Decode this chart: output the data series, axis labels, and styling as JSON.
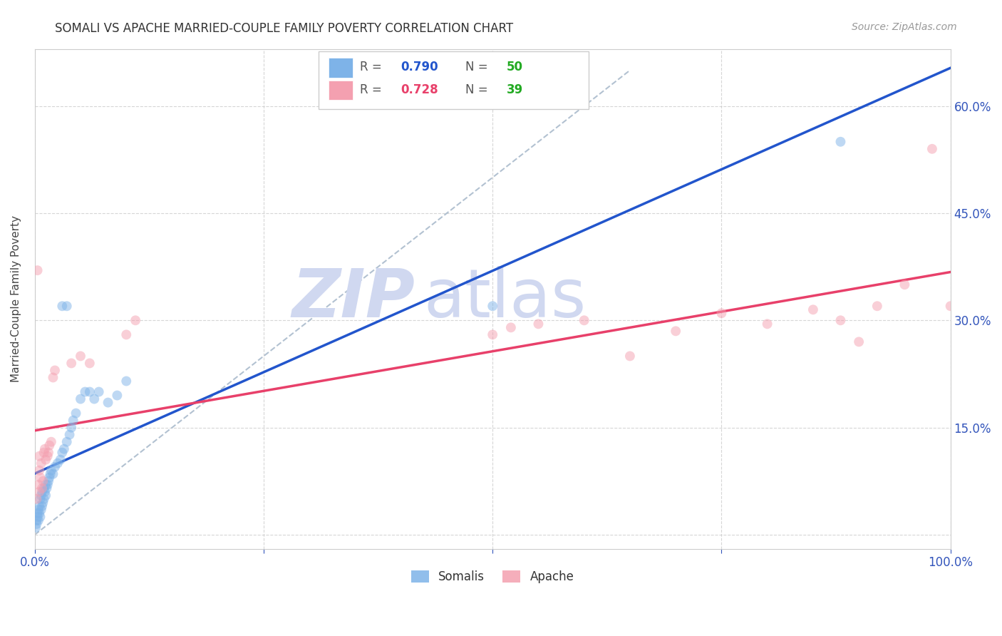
{
  "title": "SOMALI VS APACHE MARRIED-COUPLE FAMILY POVERTY CORRELATION CHART",
  "source": "Source: ZipAtlas.com",
  "ylabel": "Married-Couple Family Poverty",
  "xlim": [
    0,
    1.0
  ],
  "ylim": [
    -0.02,
    0.68
  ],
  "yticks": [
    0.0,
    0.15,
    0.3,
    0.45,
    0.6
  ],
  "ytick_labels": [
    "",
    "15.0%",
    "30.0%",
    "45.0%",
    "60.0%"
  ],
  "xtick_labels": [
    "0.0%",
    "",
    "",
    "",
    "100.0%"
  ],
  "grid_color": "#cccccc",
  "background_color": "#ffffff",
  "somali_color": "#7EB3E8",
  "apache_color": "#F4A0B0",
  "diagonal_color": "#aabbcc",
  "somali_line_color": "#2255CC",
  "apache_line_color": "#E8406A",
  "legend_R_color": "#2255CC",
  "legend_N_color": "#22AA22",
  "watermark_zip_color": "#D0D8F0",
  "watermark_atlas_color": "#D0D8F0",
  "marker_size": 100,
  "marker_alpha": 0.5,
  "line_width": 2.5,
  "somali_x": [
    0.001,
    0.002,
    0.002,
    0.003,
    0.003,
    0.004,
    0.004,
    0.005,
    0.005,
    0.006,
    0.006,
    0.007,
    0.007,
    0.008,
    0.008,
    0.009,
    0.01,
    0.01,
    0.011,
    0.012,
    0.012,
    0.013,
    0.014,
    0.015,
    0.016,
    0.017,
    0.018,
    0.02,
    0.022,
    0.025,
    0.028,
    0.03,
    0.032,
    0.035,
    0.038,
    0.04,
    0.042,
    0.045,
    0.05,
    0.055,
    0.06,
    0.065,
    0.07,
    0.08,
    0.09,
    0.1,
    0.03,
    0.035,
    0.5,
    0.88
  ],
  "somali_y": [
    0.01,
    0.015,
    0.02,
    0.025,
    0.03,
    0.02,
    0.035,
    0.03,
    0.04,
    0.025,
    0.05,
    0.035,
    0.055,
    0.04,
    0.06,
    0.045,
    0.05,
    0.065,
    0.06,
    0.055,
    0.07,
    0.065,
    0.07,
    0.075,
    0.08,
    0.085,
    0.09,
    0.085,
    0.095,
    0.1,
    0.105,
    0.115,
    0.12,
    0.13,
    0.14,
    0.15,
    0.16,
    0.17,
    0.19,
    0.2,
    0.2,
    0.19,
    0.2,
    0.185,
    0.195,
    0.215,
    0.32,
    0.32,
    0.32,
    0.55
  ],
  "apache_x": [
    0.002,
    0.003,
    0.004,
    0.005,
    0.005,
    0.006,
    0.007,
    0.008,
    0.009,
    0.01,
    0.011,
    0.012,
    0.014,
    0.015,
    0.016,
    0.018,
    0.02,
    0.022,
    0.04,
    0.05,
    0.06,
    0.1,
    0.11,
    0.5,
    0.52,
    0.55,
    0.6,
    0.65,
    0.7,
    0.75,
    0.8,
    0.85,
    0.88,
    0.9,
    0.92,
    0.95,
    0.98,
    1.0,
    0.005
  ],
  "apache_y": [
    0.05,
    0.37,
    0.07,
    0.09,
    0.11,
    0.08,
    0.1,
    0.065,
    0.075,
    0.115,
    0.12,
    0.105,
    0.11,
    0.115,
    0.125,
    0.13,
    0.22,
    0.23,
    0.24,
    0.25,
    0.24,
    0.28,
    0.3,
    0.28,
    0.29,
    0.295,
    0.3,
    0.25,
    0.285,
    0.31,
    0.295,
    0.315,
    0.3,
    0.27,
    0.32,
    0.35,
    0.54,
    0.32,
    0.06
  ],
  "somali_reg": [
    0.0,
    1.0
  ],
  "apache_reg": [
    0.0,
    1.0
  ]
}
